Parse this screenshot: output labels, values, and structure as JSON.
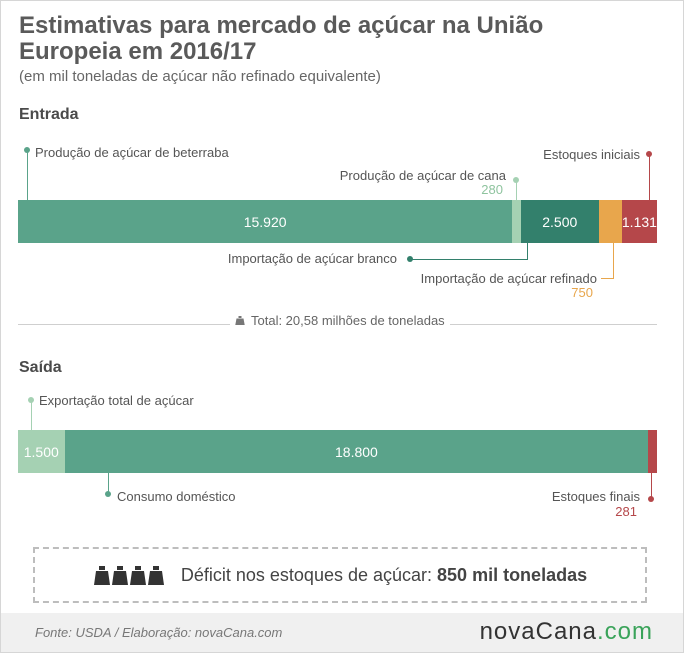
{
  "title": "Estimativas para mercado de açúcar na União Europeia em 2016/17",
  "subtitle": "(em mil toneladas de açúcar não refinado equivalente)",
  "entrada": {
    "label": "Entrada",
    "total_text": "Total: 20,58 milhões de toneladas"
  },
  "saida": {
    "label": "Saída"
  },
  "chart_data": [
    {
      "type": "bar",
      "title": "Entrada",
      "series": [
        {
          "name": "Produção de açúcar de beterraba",
          "value": 15920,
          "display": "15.920",
          "color": "#5aa38a"
        },
        {
          "name": "Produção de açúcar de cana",
          "value": 280,
          "display": "280",
          "color": "#a5d1b3"
        },
        {
          "name": "Importação de açúcar branco",
          "value": 2500,
          "display": "2.500",
          "color": "#33806c"
        },
        {
          "name": "Importação de açúcar refinado",
          "value": 750,
          "display": "750",
          "color": "#e8a64c"
        },
        {
          "name": "Estoques iniciais",
          "value": 1131,
          "display": "1.131",
          "color": "#b5474a"
        }
      ]
    },
    {
      "type": "bar",
      "title": "Saída",
      "series": [
        {
          "name": "Exportação total de açúcar",
          "value": 1500,
          "display": "1.500",
          "color": "#a5d1b3"
        },
        {
          "name": "Consumo doméstico",
          "value": 18800,
          "display": "18.800",
          "color": "#5aa38a"
        },
        {
          "name": "Estoques finais",
          "value": 281,
          "display": "281",
          "color": "#b5474a"
        }
      ]
    }
  ],
  "deficit": {
    "text": "Déficit nos estoques de açúcar:",
    "value": "850 mil toneladas",
    "icon": "weight-icon"
  },
  "footer": {
    "source": "Fonte: USDA / Elaboração:  novaCana.com",
    "logo_main": "novaCana",
    "logo_suffix": ".com"
  }
}
